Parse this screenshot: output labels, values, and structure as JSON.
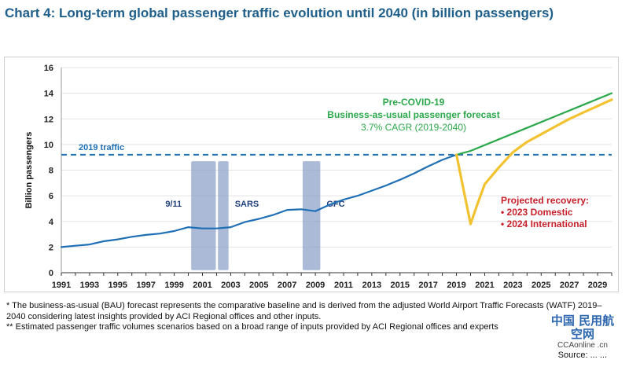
{
  "chart_data": {
    "type": "line",
    "title": "Chart 4: Long-term global passenger traffic evolution until 2040 (in billion passengers)",
    "ylabel": "Billion passengers",
    "xlabel": "",
    "xlim": [
      1991,
      2030
    ],
    "ylim": [
      0,
      16
    ],
    "yticks": [
      0,
      2,
      4,
      6,
      8,
      10,
      12,
      14,
      16
    ],
    "xticks": [
      1991,
      1993,
      1995,
      1997,
      1999,
      2001,
      2003,
      2005,
      2007,
      2009,
      2011,
      2013,
      2015,
      2017,
      2019,
      2021,
      2023,
      2025,
      2027,
      2029
    ],
    "grid": true,
    "series": [
      {
        "name": "",
        "color": "#1f6fb5",
        "x": [
          1991,
          1992,
          1993,
          1994,
          1995,
          1996,
          1997,
          1998,
          1999,
          2000,
          2001,
          2002,
          2003,
          2004,
          2005,
          2006,
          2007,
          2008,
          2009,
          2010,
          2011,
          2012,
          2013,
          2014,
          2015,
          2016,
          2017,
          2018,
          2019
        ],
        "y": [
          2.0,
          2.1,
          2.2,
          2.45,
          2.6,
          2.8,
          2.95,
          3.05,
          3.25,
          3.55,
          3.45,
          3.45,
          3.55,
          3.95,
          4.2,
          4.5,
          4.9,
          4.95,
          4.8,
          5.3,
          5.7,
          6.0,
          6.4,
          6.8,
          7.25,
          7.75,
          8.3,
          8.8,
          9.2
        ]
      },
      {
        "name": "Pre-COVID-19 Business-as-usual passenger forecast",
        "color": "#2aa84a",
        "x": [
          2019,
          2020,
          2022,
          2024,
          2026,
          2028,
          2030
        ],
        "y": [
          9.2,
          9.5,
          10.4,
          11.3,
          12.2,
          13.1,
          14.0
        ]
      },
      {
        "name": "Projected recovery",
        "color": "#f2c230",
        "x": [
          2019,
          2019.5,
          2020,
          2020.5,
          2021,
          2022,
          2023,
          2024,
          2025,
          2026,
          2027,
          2028,
          2029,
          2030
        ],
        "y": [
          9.2,
          6.5,
          3.8,
          5.4,
          6.9,
          8.2,
          9.4,
          10.2,
          10.8,
          11.4,
          12.0,
          12.5,
          13.0,
          13.5
        ]
      }
    ],
    "reference_line": {
      "label": "2019 traffic",
      "y": 9.2,
      "color": "#1f6fb5"
    },
    "shaded_periods": [
      {
        "x0": 2000.2,
        "x1": 2001.95,
        "label": "9/11"
      },
      {
        "x0": 2002.1,
        "x1": 2002.85,
        "label": "SARS"
      },
      {
        "x0": 2008.1,
        "x1": 2009.35,
        "label": "GFC"
      }
    ],
    "annotations": {
      "bau_line1": "Pre-COVID-19",
      "bau_line2": "Business-as-usual passenger forecast",
      "bau_line3": "3.7% CAGR (2019-2040)",
      "recovery_title": "Projected recovery:",
      "recovery_items": [
        "• 2023 Domestic",
        "• 2024 International"
      ]
    }
  },
  "notes": {
    "note1": "* The business-as-usual (BAU) forecast represents the comparative baseline and is derived from the adjusted World Airport Traffic Forecasts (WATF) 2019–2040 considering latest insights provided by ACI Regional offices and other inputs.",
    "note2": "** Estimated passenger traffic volumes scenarios based on a broad range of inputs provided by ACI Regional offices and experts",
    "source": "Source: ... ..."
  },
  "watermark": {
    "chinese": "中国 民用航空网",
    "latin": "CCAonline .cn"
  }
}
